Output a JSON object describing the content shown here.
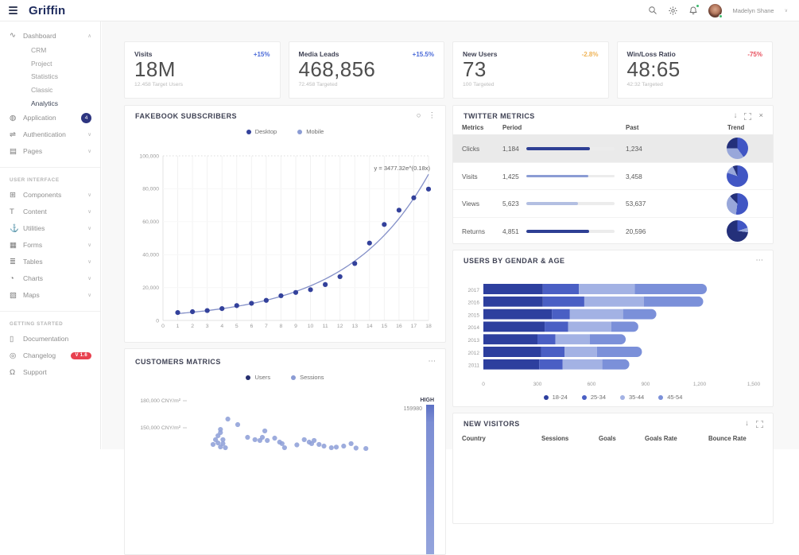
{
  "header": {
    "brand": "Griffin",
    "user": {
      "name": "Madelyn Shane"
    },
    "icon_names": [
      "hamburger-icon",
      "search-icon",
      "gear-icon",
      "bell-icon",
      "avatar",
      "chevron-down-icon"
    ],
    "notification_dot_color": "#3cba6e"
  },
  "glyphs": {
    "chevron_down": "∨",
    "chevron_up": "∧",
    "kebab_vertical": "⋮",
    "kebab_horizontal": "⋯",
    "download": "↓",
    "close": "×",
    "circle": "○"
  },
  "sidebar": {
    "sections": [
      {
        "title": "",
        "items": [
          {
            "label": "Dashboard",
            "icon": "activity-icon",
            "glyph": "∿",
            "chevron": "up",
            "children": [
              "CRM",
              "Project",
              "Statistics",
              "Classic",
              "Analytics"
            ],
            "active_child": 4
          },
          {
            "label": "Application",
            "icon": "globe-icon",
            "glyph": "◍",
            "badge": "4"
          },
          {
            "label": "Authentication",
            "icon": "shuffle-icon",
            "glyph": "⇌",
            "chevron": "down"
          },
          {
            "label": "Pages",
            "icon": "page-icon",
            "glyph": "▤",
            "chevron": "down"
          }
        ]
      },
      {
        "title": "USER INTERFACE",
        "items": [
          {
            "label": "Components",
            "icon": "components-icon",
            "glyph": "⊞",
            "chevron": "down"
          },
          {
            "label": "Content",
            "icon": "typography-icon",
            "glyph": "T",
            "chevron": "down"
          },
          {
            "label": "Utilities",
            "icon": "anchor-icon",
            "glyph": "⚓",
            "chevron": "down"
          },
          {
            "label": "Forms",
            "icon": "forms-icon",
            "glyph": "▦",
            "chevron": "down"
          },
          {
            "label": "Tables",
            "icon": "tables-icon",
            "glyph": "≣",
            "chevron": "down"
          },
          {
            "label": "Charts",
            "icon": "charts-icon",
            "glyph": "◔",
            "chevron": "down"
          },
          {
            "label": "Maps",
            "icon": "maps-icon",
            "glyph": "▧",
            "chevron": "down"
          }
        ]
      },
      {
        "title": "GETTING STARTED",
        "items": [
          {
            "label": "Documentation",
            "icon": "book-icon",
            "glyph": "▯"
          },
          {
            "label": "Changelog",
            "icon": "eye-icon",
            "glyph": "◎",
            "badge_pill": "V 1.6"
          },
          {
            "label": "Support",
            "icon": "headphones-icon",
            "glyph": "Ω"
          }
        ]
      }
    ]
  },
  "stats": [
    {
      "title": "Visits",
      "delta": "+15%",
      "delta_color": "#4a6ad8",
      "value": "18M",
      "sub": "12.458 Target Users"
    },
    {
      "title": "Media Leads",
      "delta": "+15.5%",
      "delta_color": "#4a6ad8",
      "value": "468,856",
      "sub": "72.458 Targeted"
    },
    {
      "title": "New Users",
      "delta": "-2.8%",
      "delta_color": "#efb356",
      "value": "73",
      "sub": "100 Targeted"
    },
    {
      "title": "Win/Loss Ratio",
      "delta": "-75%",
      "delta_color": "#e8505e",
      "value": "48:65",
      "sub": "42:32 Targeted"
    }
  ],
  "panels": {
    "fakebook": {
      "title": "FAKEBOOK SUBSCRIBERS"
    },
    "twitter": {
      "title": "TWITTER METRICS",
      "columns": [
        "Metrics",
        "Period",
        "Past",
        "Trend"
      ],
      "rows": [
        {
          "metric": "Clicks",
          "period": "1,184",
          "bar_pct": 72,
          "bar_color": "#2e3f94",
          "past": "1,234",
          "highlight": true,
          "pie": [
            [
              "#4156c4",
              40
            ],
            [
              "#98a7da",
              35
            ],
            [
              "#24307a",
              25
            ]
          ]
        },
        {
          "metric": "Visits",
          "period": "1,425",
          "bar_pct": 70,
          "bar_color": "#8b9cd4",
          "past": "3,458",
          "highlight": false,
          "pie": [
            [
              "#4156c4",
              80
            ],
            [
              "#98a7da",
              13
            ],
            [
              "#24307a",
              7
            ]
          ]
        },
        {
          "metric": "Views",
          "period": "5,623",
          "bar_pct": 59,
          "bar_color": "#b3bfe2",
          "past": "53,637",
          "highlight": false,
          "pie": [
            [
              "#4156c4",
              52
            ],
            [
              "#98a7da",
              36
            ],
            [
              "#24307a",
              12
            ]
          ]
        },
        {
          "metric": "Returns",
          "period": "4,851",
          "bar_pct": 71,
          "bar_color": "#2e3f94",
          "past": "20,596",
          "highlight": false,
          "pie": [
            [
              "#4156c4",
              20
            ],
            [
              "#98a7da",
              7
            ],
            [
              "#24307a",
              73
            ]
          ]
        }
      ]
    },
    "users": {
      "title": "USERS BY GENDAR & AGE"
    },
    "customers": {
      "title": "CUSTOMERS MATRICS"
    },
    "visitors": {
      "title": "NEW VISITORS",
      "columns": [
        "Country",
        "Sessions",
        "Goals",
        "Goals Rate",
        "Bounce Rate"
      ]
    }
  },
  "chart_data": [
    {
      "id": "fakebook_subscribers",
      "type": "scatter",
      "title": "FAKEBOOK SUBSCRIBERS",
      "legend": [
        {
          "name": "Desktop",
          "color": "#33419b"
        },
        {
          "name": "Mobile",
          "color": "#8b9cd4"
        }
      ],
      "legend_position": "top",
      "grid": true,
      "annotation": "y = 3477.32e^(0.18x)",
      "trendline": {
        "a": 3477.32,
        "b": 0.18
      },
      "x": [
        1,
        2,
        3,
        4,
        5,
        6,
        7,
        8,
        9,
        10,
        11,
        12,
        13,
        14,
        15,
        16,
        17,
        18
      ],
      "values": [
        4800,
        5300,
        6000,
        7200,
        9000,
        10400,
        12200,
        15000,
        17000,
        18700,
        21800,
        26600,
        34600,
        47000,
        58300,
        67000,
        74500,
        79800
      ],
      "xlim": [
        0,
        18
      ],
      "ylim": [
        0,
        100000
      ],
      "xticks": [
        0,
        1,
        2,
        3,
        4,
        5,
        6,
        7,
        8,
        9,
        10,
        11,
        12,
        13,
        14,
        15,
        16,
        17,
        18
      ],
      "yticks": [
        0,
        20000,
        40000,
        60000,
        80000,
        100000
      ]
    },
    {
      "id": "users_by_gendar_age",
      "type": "bar",
      "stacked": true,
      "horizontal": true,
      "title": "USERS BY GENDAR & AGE",
      "legend_position": "bottom",
      "categories": [
        "2017",
        "2016",
        "2015",
        "2014",
        "2013",
        "2012",
        "2011"
      ],
      "series": [
        {
          "name": "18-24",
          "color": "#2d3f9e",
          "values": [
            330,
            330,
            380,
            340,
            300,
            320,
            310
          ]
        },
        {
          "name": "25-34",
          "color": "#4a5fc4",
          "values": [
            200,
            230,
            100,
            130,
            100,
            130,
            130
          ]
        },
        {
          "name": "35-44",
          "color": "#a3b2e4",
          "values": [
            310,
            330,
            295,
            240,
            190,
            180,
            220
          ]
        },
        {
          "name": "45-54",
          "color": "#7b90d9",
          "values": [
            400,
            330,
            185,
            150,
            200,
            250,
            150
          ]
        }
      ],
      "xlim": [
        0,
        1500
      ],
      "xticks": [
        0,
        300,
        600,
        900,
        1200,
        1500
      ]
    },
    {
      "id": "customers_matrics",
      "type": "scatter",
      "title": "CUSTOMERS MATRICS",
      "legend": [
        {
          "name": "Users",
          "color": "#252e6e"
        },
        {
          "name": "Sessions",
          "color": "#8b9cd4"
        }
      ],
      "legend_position": "top",
      "ytick_labels": [
        "180,000 CNY/m²",
        "150,000 CNY/m²"
      ],
      "ytick_values": [
        180000,
        150000
      ],
      "high": {
        "label": "HIGH",
        "value": "159980"
      },
      "point_color": "#8fa0d8",
      "points": [
        {
          "x": 0.13,
          "y": 148200
        },
        {
          "x": 0.13,
          "y": 144700
        },
        {
          "x": 0.12,
          "y": 141200
        },
        {
          "x": 0.11,
          "y": 136800
        },
        {
          "x": 0.14,
          "y": 136800
        },
        {
          "x": 0.12,
          "y": 133200
        },
        {
          "x": 0.14,
          "y": 132400
        },
        {
          "x": 0.1,
          "y": 131500
        },
        {
          "x": 0.13,
          "y": 128800
        },
        {
          "x": 0.15,
          "y": 127900
        },
        {
          "x": 0.16,
          "y": 159700
        },
        {
          "x": 0.2,
          "y": 153500
        },
        {
          "x": 0.24,
          "y": 139400
        },
        {
          "x": 0.27,
          "y": 136800
        },
        {
          "x": 0.29,
          "y": 135900
        },
        {
          "x": 0.3,
          "y": 139400
        },
        {
          "x": 0.31,
          "y": 146500
        },
        {
          "x": 0.32,
          "y": 135900
        },
        {
          "x": 0.35,
          "y": 138500
        },
        {
          "x": 0.37,
          "y": 134100
        },
        {
          "x": 0.38,
          "y": 132400
        },
        {
          "x": 0.39,
          "y": 127900
        },
        {
          "x": 0.44,
          "y": 131000
        },
        {
          "x": 0.47,
          "y": 136800
        },
        {
          "x": 0.49,
          "y": 134100
        },
        {
          "x": 0.5,
          "y": 132400
        },
        {
          "x": 0.51,
          "y": 135900
        },
        {
          "x": 0.53,
          "y": 131500
        },
        {
          "x": 0.55,
          "y": 129700
        },
        {
          "x": 0.58,
          "y": 127900
        },
        {
          "x": 0.6,
          "y": 128500
        },
        {
          "x": 0.63,
          "y": 129700
        },
        {
          "x": 0.66,
          "y": 132400
        },
        {
          "x": 0.68,
          "y": 127500
        },
        {
          "x": 0.72,
          "y": 127000
        }
      ]
    }
  ]
}
